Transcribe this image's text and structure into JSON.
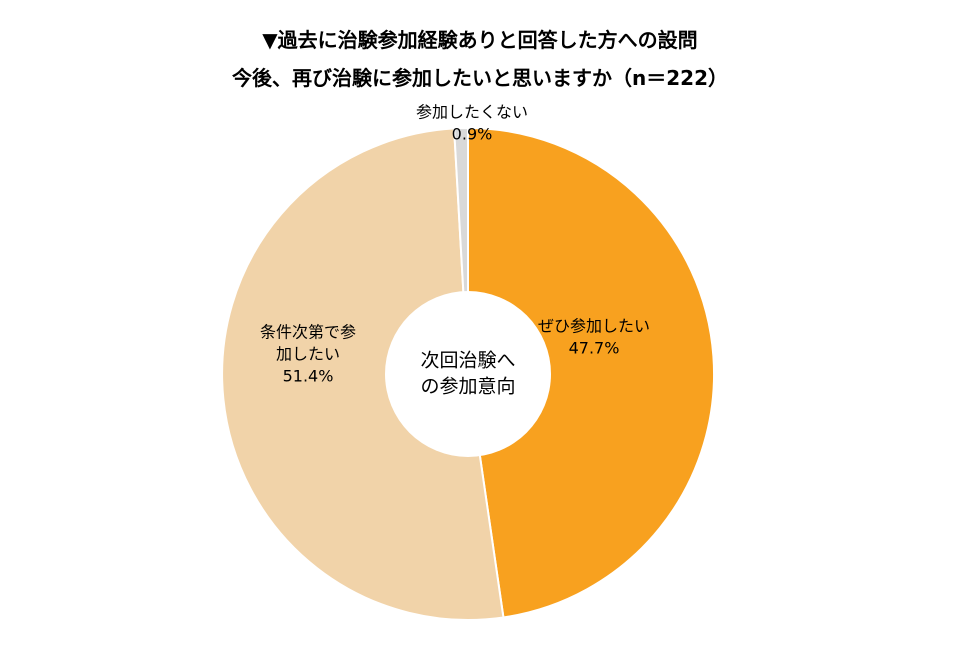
{
  "title_lines": [
    "▼過去に治験参加経験ありと回答した方への設問",
    "今後、再び治験に参加したいと思いますか（n＝222）"
  ],
  "chart_data": {
    "type": "pie",
    "variant": "donut",
    "center_label": [
      "次回治験へ",
      "の参加意向"
    ],
    "slices": [
      {
        "label": [
          "ぜひ参加したい"
        ],
        "value": 47.7,
        "value_label": "47.7%",
        "color": "#F8A11F"
      },
      {
        "label": [
          "条件次第で参",
          "加したい"
        ],
        "value": 51.4,
        "value_label": "51.4%",
        "color": "#F1D3A9"
      },
      {
        "label": [
          "参加したくない"
        ],
        "value": 0.9,
        "value_label": "0.9%",
        "color": "#D9D9D9"
      }
    ]
  }
}
